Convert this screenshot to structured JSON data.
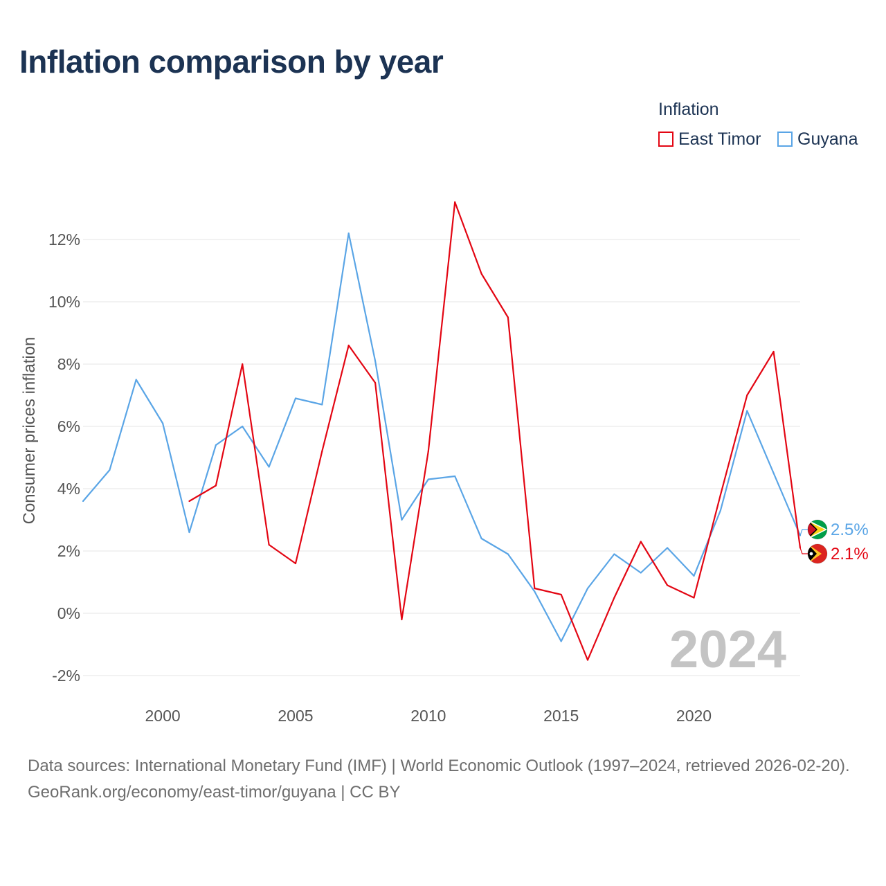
{
  "title": "Inflation comparison by year",
  "legend": {
    "heading": "Inflation",
    "items": [
      {
        "name": "East Timor",
        "color": "#e30613"
      },
      {
        "name": "Guyana",
        "color": "#5aa5e6"
      }
    ]
  },
  "chart_data": {
    "type": "line",
    "title": "Inflation comparison by year",
    "xlabel": "",
    "ylabel": "Consumer prices inflation",
    "xlim": [
      1997,
      2024
    ],
    "ylim": [
      -2.6,
      13.5
    ],
    "x_ticks": [
      2000,
      2005,
      2010,
      2015,
      2020
    ],
    "y_ticks": [
      -2,
      0,
      2,
      4,
      6,
      8,
      10,
      12
    ],
    "y_tick_labels": [
      "-2%",
      "0%",
      "2%",
      "4%",
      "6%",
      "8%",
      "10%",
      "12%"
    ],
    "grid": true,
    "legend_position": "top-right",
    "watermark_year": "2024",
    "series": [
      {
        "name": "East Timor",
        "color": "#e30613",
        "flag_icon": "east-timor-flag-icon",
        "end_label": "2.1%",
        "x": [
          2001,
          2002,
          2003,
          2004,
          2005,
          2006,
          2007,
          2008,
          2009,
          2010,
          2011,
          2012,
          2013,
          2014,
          2015,
          2016,
          2017,
          2018,
          2019,
          2020,
          2021,
          2022,
          2023,
          2024
        ],
        "values": [
          3.6,
          4.1,
          8.0,
          2.2,
          1.6,
          5.2,
          8.6,
          7.4,
          -0.2,
          5.2,
          13.2,
          10.9,
          9.5,
          0.8,
          0.6,
          -1.5,
          0.5,
          2.3,
          0.9,
          0.5,
          3.8,
          7.0,
          8.4,
          2.1
        ]
      },
      {
        "name": "Guyana",
        "color": "#5aa5e6",
        "flag_icon": "guyana-flag-icon",
        "end_label": "2.5%",
        "x": [
          1997,
          1998,
          1999,
          2000,
          2001,
          2002,
          2003,
          2004,
          2005,
          2006,
          2007,
          2008,
          2009,
          2010,
          2011,
          2012,
          2013,
          2014,
          2015,
          2016,
          2017,
          2018,
          2019,
          2020,
          2021,
          2022,
          2023,
          2024
        ],
        "values": [
          3.6,
          4.6,
          7.5,
          6.1,
          2.6,
          5.4,
          6.0,
          4.7,
          6.9,
          6.7,
          12.2,
          8.1,
          3.0,
          4.3,
          4.4,
          2.4,
          1.9,
          0.7,
          -0.9,
          0.8,
          1.9,
          1.3,
          2.1,
          1.2,
          3.3,
          6.5,
          4.5,
          2.5
        ]
      }
    ]
  },
  "source": {
    "line1": "Data sources: International Monetary Fund (IMF) | World Economic Outlook (1997–2024, retrieved 2026-02-20).",
    "line2": "GeoRank.org/economy/east-timor/guyana | CC BY"
  }
}
